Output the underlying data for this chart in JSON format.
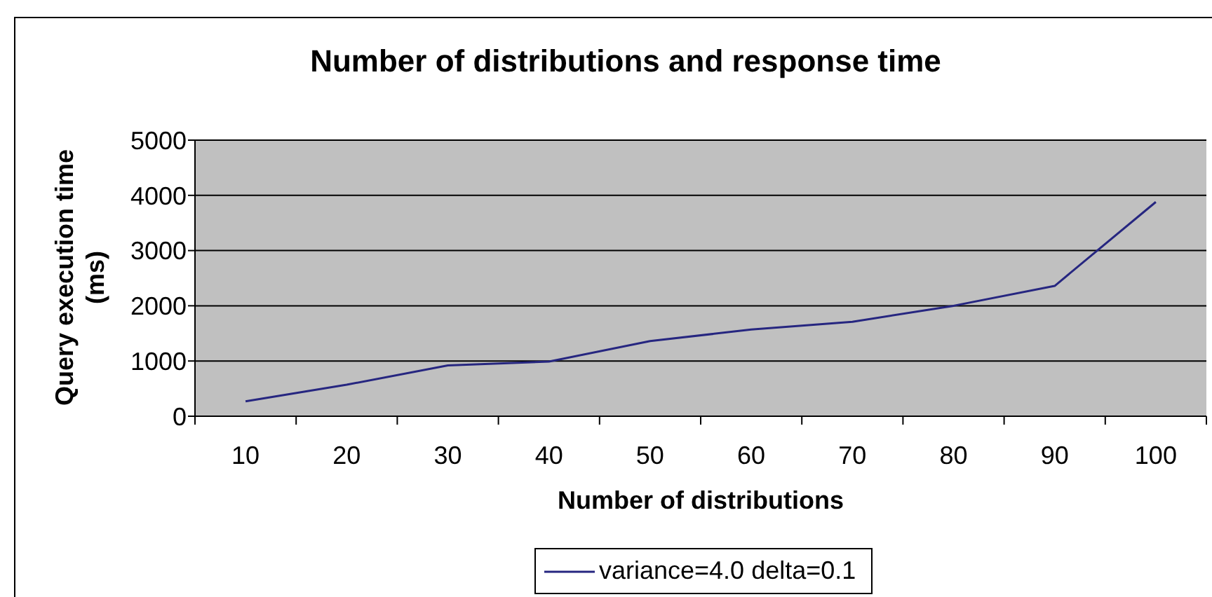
{
  "chart_data": {
    "type": "line",
    "title": "Number of distributions and response time",
    "xlabel": "Number of distributions",
    "ylabel": "Query execution time (ms)",
    "categories": [
      "10",
      "20",
      "30",
      "40",
      "50",
      "60",
      "70",
      "80",
      "90",
      "100"
    ],
    "series": [
      {
        "name": "variance=4.0 delta=0.1",
        "color": "#262680",
        "values": [
          270,
          570,
          920,
          990,
          1360,
          1570,
          1710,
          2000,
          2360,
          3880
        ]
      }
    ],
    "ylim": [
      0,
      5000
    ],
    "yticks": [
      0,
      1000,
      2000,
      3000,
      4000,
      5000
    ],
    "grid": "y",
    "legend": "bottom",
    "marker": "none",
    "line_style": "solid"
  }
}
